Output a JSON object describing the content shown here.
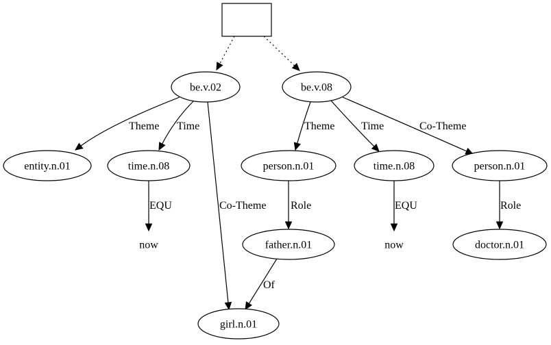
{
  "diagram": {
    "nodes": [
      {
        "id": "root",
        "label": "",
        "shape": "box"
      },
      {
        "id": "be02",
        "label": "be.v.02",
        "shape": "ellipse"
      },
      {
        "id": "be08",
        "label": "be.v.08",
        "shape": "ellipse"
      },
      {
        "id": "entity",
        "label": "entity.n.01",
        "shape": "ellipse"
      },
      {
        "id": "time1",
        "label": "time.n.08",
        "shape": "ellipse"
      },
      {
        "id": "person1",
        "label": "person.n.01",
        "shape": "ellipse"
      },
      {
        "id": "time2",
        "label": "time.n.08",
        "shape": "ellipse"
      },
      {
        "id": "person2",
        "label": "person.n.01",
        "shape": "ellipse"
      },
      {
        "id": "now1",
        "label": "now",
        "shape": "plain"
      },
      {
        "id": "father",
        "label": "father.n.01",
        "shape": "ellipse"
      },
      {
        "id": "now2",
        "label": "now",
        "shape": "plain"
      },
      {
        "id": "doctor",
        "label": "doctor.n.01",
        "shape": "ellipse"
      },
      {
        "id": "girl",
        "label": "girl.n.01",
        "shape": "ellipse"
      }
    ],
    "edges": [
      {
        "id": "e_root_be02",
        "from": "root",
        "to": "be02",
        "label": "",
        "style": "dotted"
      },
      {
        "id": "e_root_be08",
        "from": "root",
        "to": "be08",
        "label": "",
        "style": "dotted"
      },
      {
        "id": "e_be02_entity",
        "from": "be02",
        "to": "entity",
        "label": "Theme",
        "style": "solid"
      },
      {
        "id": "e_be02_time1",
        "from": "be02",
        "to": "time1",
        "label": "Time",
        "style": "solid"
      },
      {
        "id": "e_be02_girl",
        "from": "be02",
        "to": "girl",
        "label": "Co-Theme",
        "style": "solid"
      },
      {
        "id": "e_be08_person1",
        "from": "be08",
        "to": "person1",
        "label": "Theme",
        "style": "solid"
      },
      {
        "id": "e_be08_time2",
        "from": "be08",
        "to": "time2",
        "label": "Time",
        "style": "solid"
      },
      {
        "id": "e_be08_person2",
        "from": "be08",
        "to": "person2",
        "label": "Co-Theme",
        "style": "solid"
      },
      {
        "id": "e_time1_now1",
        "from": "time1",
        "to": "now1",
        "label": "EQU",
        "style": "solid"
      },
      {
        "id": "e_person1_father",
        "from": "person1",
        "to": "father",
        "label": "Role",
        "style": "solid"
      },
      {
        "id": "e_time2_now2",
        "from": "time2",
        "to": "now2",
        "label": "EQU",
        "style": "solid"
      },
      {
        "id": "e_person2_doctor",
        "from": "person2",
        "to": "doctor",
        "label": "Role",
        "style": "solid"
      },
      {
        "id": "e_father_girl",
        "from": "father",
        "to": "girl",
        "label": "Of",
        "style": "solid"
      }
    ]
  }
}
